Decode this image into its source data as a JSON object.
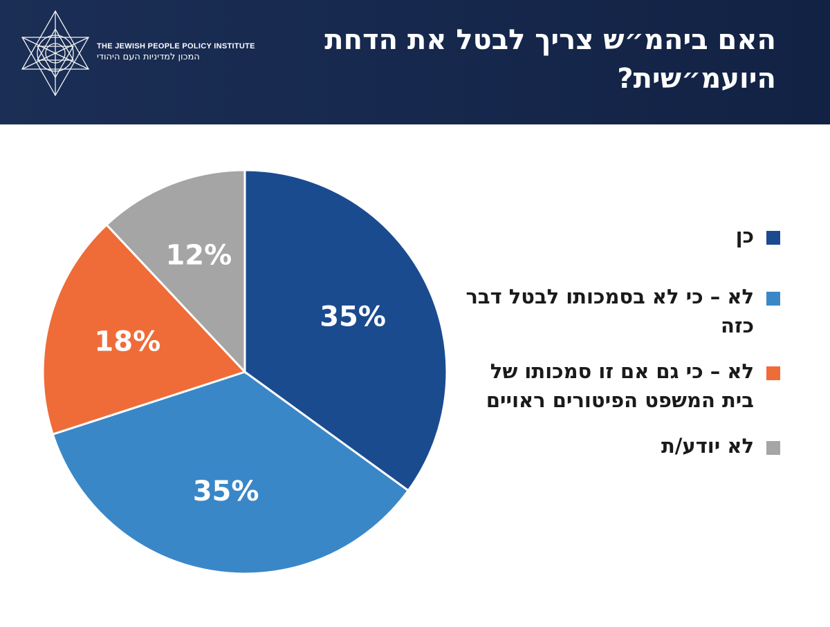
{
  "header": {
    "title": "האם ביהמ״ש צריך לבטל את הדחת היועמ״שית?",
    "background_color": "#16284d"
  },
  "logo": {
    "name_en": "The Jewish People Policy Institute",
    "name_he": "המכון למדיניות העם היהודי"
  },
  "chart_data": {
    "type": "pie",
    "title": "האם ביהמ״ש צריך לבטל את הדחת היועמ״שית?",
    "start_angle_deg": 0,
    "direction": "clockwise",
    "slices": [
      {
        "label": "כן",
        "value": 35,
        "display": "35%",
        "color": "#1b4b8f"
      },
      {
        "label": "לא – כי לא בסמכותו לבטל דבר כזה",
        "value": 35,
        "display": "35%",
        "color": "#3a87c8"
      },
      {
        "label": "לא – כי גם אם זו סמכותו של בית המשפט הפיטורים ראויים",
        "value": 18,
        "display": "18%",
        "color": "#ef6c39"
      },
      {
        "label": "לא יודע/ת",
        "value": 12,
        "display": "12%",
        "color": "#a5a5a5"
      }
    ],
    "legend_position": "right"
  }
}
